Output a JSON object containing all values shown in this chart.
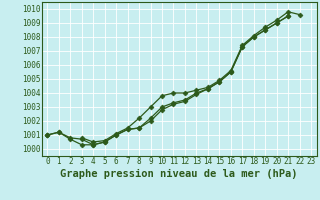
{
  "title": "Graphe pression niveau de la mer (hPa)",
  "background_color": "#c8eef0",
  "plot_bg_color": "#c8eef0",
  "grid_color": "#ffffff",
  "line_color": "#2d5a1b",
  "border_color": "#2d5a1b",
  "xlim": [
    -0.5,
    23.5
  ],
  "ylim": [
    999.5,
    1010.5
  ],
  "yticks": [
    1000,
    1001,
    1002,
    1003,
    1004,
    1005,
    1006,
    1007,
    1008,
    1009,
    1010
  ],
  "xticks": [
    0,
    1,
    2,
    3,
    4,
    5,
    6,
    7,
    8,
    9,
    10,
    11,
    12,
    13,
    14,
    15,
    16,
    17,
    18,
    19,
    20,
    21,
    22,
    23
  ],
  "series": [
    [
      1001.0,
      1001.2,
      1000.8,
      1000.7,
      1000.3,
      1000.5,
      1001.0,
      1001.4,
      1001.5,
      1002.2,
      1003.0,
      1003.3,
      1003.5,
      1004.0,
      1004.3,
      1004.8,
      1005.5,
      1007.3,
      1008.0,
      1008.5,
      1009.0,
      1009.5,
      null,
      null
    ],
    [
      1001.0,
      1001.2,
      1000.7,
      1000.3,
      1000.3,
      1000.5,
      1001.0,
      1001.4,
      1001.5,
      1002.0,
      1002.8,
      1003.2,
      1003.4,
      1003.9,
      1004.3,
      1004.8,
      1005.5,
      1007.3,
      1008.0,
      1008.5,
      1009.0,
      1009.5,
      null,
      null
    ],
    [
      1001.0,
      null,
      null,
      1000.8,
      1000.5,
      1000.6,
      1001.1,
      1001.5,
      1002.2,
      1003.0,
      1003.8,
      1004.0,
      1004.0,
      1004.2,
      1004.4,
      1004.9,
      1005.6,
      1007.4,
      1008.1,
      1008.7,
      1009.2,
      1009.8,
      1009.6,
      null
    ]
  ],
  "marker": "D",
  "markersize": 2.5,
  "linewidth": 0.9,
  "title_fontsize": 7.5,
  "tick_fontsize": 5.5,
  "fig_width": 3.2,
  "fig_height": 2.0,
  "dpi": 100
}
